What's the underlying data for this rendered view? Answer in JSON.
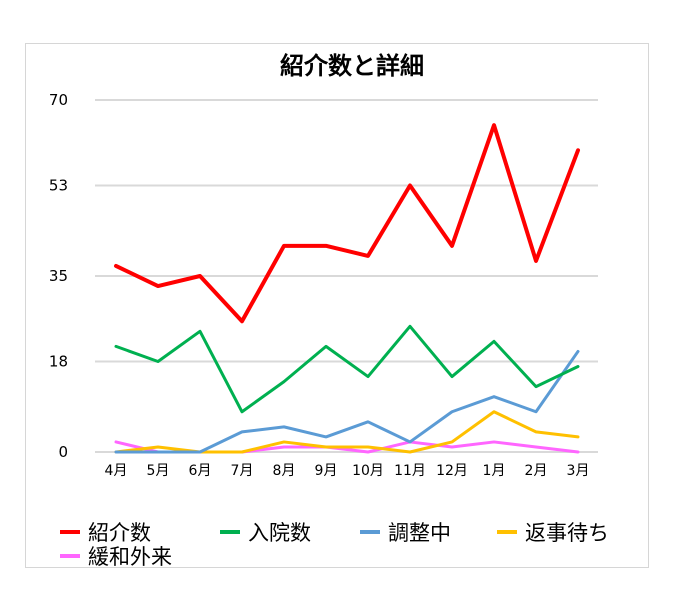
{
  "chart_data": {
    "type": "line",
    "title": "紹介数と詳細",
    "xlabel": "",
    "ylabel": "",
    "categories": [
      "4月",
      "5月",
      "6月",
      "7月",
      "8月",
      "9月",
      "10月",
      "11月",
      "12月",
      "1月",
      "2月",
      "3月"
    ],
    "yticks": [
      "0",
      "18",
      "35",
      "53",
      "70"
    ],
    "ylim": [
      0,
      70
    ],
    "grid": true,
    "legend": "bottom",
    "series": [
      {
        "name": "紹介数",
        "color": "#ff0000",
        "values": [
          37,
          33,
          35,
          26,
          41,
          41,
          39,
          53,
          41,
          65,
          38,
          60
        ]
      },
      {
        "name": "入院数",
        "color": "#00b050",
        "values": [
          21,
          18,
          24,
          8,
          14,
          21,
          15,
          25,
          15,
          22,
          13,
          17
        ]
      },
      {
        "name": "調整中",
        "color": "#5b9bd5",
        "values": [
          0,
          0,
          0,
          4,
          5,
          3,
          6,
          2,
          8,
          11,
          8,
          20
        ]
      },
      {
        "name": "返事待ち",
        "color": "#ffc000",
        "values": [
          0,
          1,
          0,
          0,
          2,
          1,
          1,
          0,
          2,
          8,
          4,
          3
        ]
      },
      {
        "name": "緩和外来",
        "color": "#ff66ff",
        "values": [
          2,
          0,
          0,
          0,
          1,
          1,
          0,
          2,
          1,
          2,
          1,
          0
        ]
      }
    ]
  }
}
